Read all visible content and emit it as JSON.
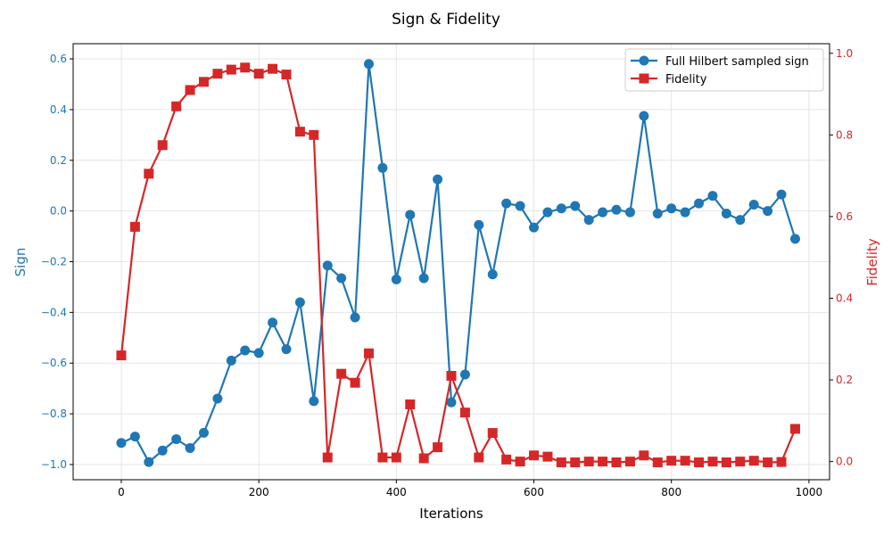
{
  "chart_data": {
    "type": "line",
    "title": "Sign & Fidelity",
    "xlabel": "Iterations",
    "xlim": [
      -70,
      1030
    ],
    "x_ticks": [
      0,
      200,
      400,
      600,
      800,
      1000
    ],
    "grid": true,
    "legend_position": "top-right",
    "x": [
      0,
      20,
      40,
      60,
      80,
      100,
      120,
      140,
      160,
      180,
      200,
      220,
      240,
      260,
      280,
      300,
      320,
      340,
      360,
      380,
      400,
      420,
      440,
      460,
      480,
      500,
      520,
      540,
      560,
      580,
      600,
      620,
      640,
      660,
      680,
      700,
      720,
      740,
      760,
      780,
      800,
      820,
      840,
      860,
      880,
      900,
      920,
      940,
      960,
      980
    ],
    "series": [
      {
        "name": "Full Hilbert sampled sign",
        "axis": "left",
        "color": "#1f77b4",
        "marker": "circle",
        "values": [
          -0.915,
          -0.89,
          -0.99,
          -0.945,
          -0.9,
          -0.935,
          -0.875,
          -0.74,
          -0.59,
          -0.55,
          -0.56,
          -0.44,
          -0.545,
          -0.36,
          -0.75,
          -0.215,
          -0.265,
          -0.42,
          0.58,
          0.17,
          -0.27,
          -0.015,
          -0.265,
          0.125,
          -0.755,
          -0.645,
          -0.055,
          -0.25,
          0.03,
          0.02,
          -0.065,
          -0.005,
          0.01,
          0.02,
          -0.035,
          -0.005,
          0.005,
          -0.005,
          0.375,
          -0.01,
          0.01,
          -0.005,
          0.03,
          0.06,
          -0.01,
          -0.035,
          0.025,
          0.0,
          0.065,
          -0.11
        ]
      },
      {
        "name": "Fidelity",
        "axis": "right",
        "color": "#d62728",
        "marker": "square",
        "values": [
          0.26,
          0.575,
          0.705,
          0.775,
          0.87,
          0.91,
          0.93,
          0.95,
          0.96,
          0.965,
          0.95,
          0.962,
          0.948,
          0.808,
          0.8,
          0.01,
          0.215,
          0.193,
          0.265,
          0.01,
          0.01,
          0.14,
          0.008,
          0.035,
          0.21,
          0.12,
          0.01,
          0.07,
          0.005,
          0.0,
          0.015,
          0.012,
          -0.002,
          -0.002,
          0.0,
          0.0,
          -0.002,
          0.0,
          0.015,
          -0.002,
          0.002,
          0.002,
          -0.002,
          0.0,
          -0.002,
          0.0,
          0.002,
          -0.002,
          -0.001,
          0.08
        ]
      }
    ],
    "left_axis": {
      "label": "Sign",
      "ylim": [
        -1.06,
        0.66
      ],
      "ticks": [
        -1.0,
        -0.8,
        -0.6,
        -0.4,
        -0.2,
        0.0,
        0.2,
        0.4,
        0.6
      ],
      "color": "#1f77b4"
    },
    "right_axis": {
      "label": "Fidelity",
      "ylim": [
        -0.0445,
        1.0235
      ],
      "ticks": [
        0.0,
        0.2,
        0.4,
        0.6,
        0.8,
        1.0
      ],
      "color": "#d62728"
    }
  }
}
